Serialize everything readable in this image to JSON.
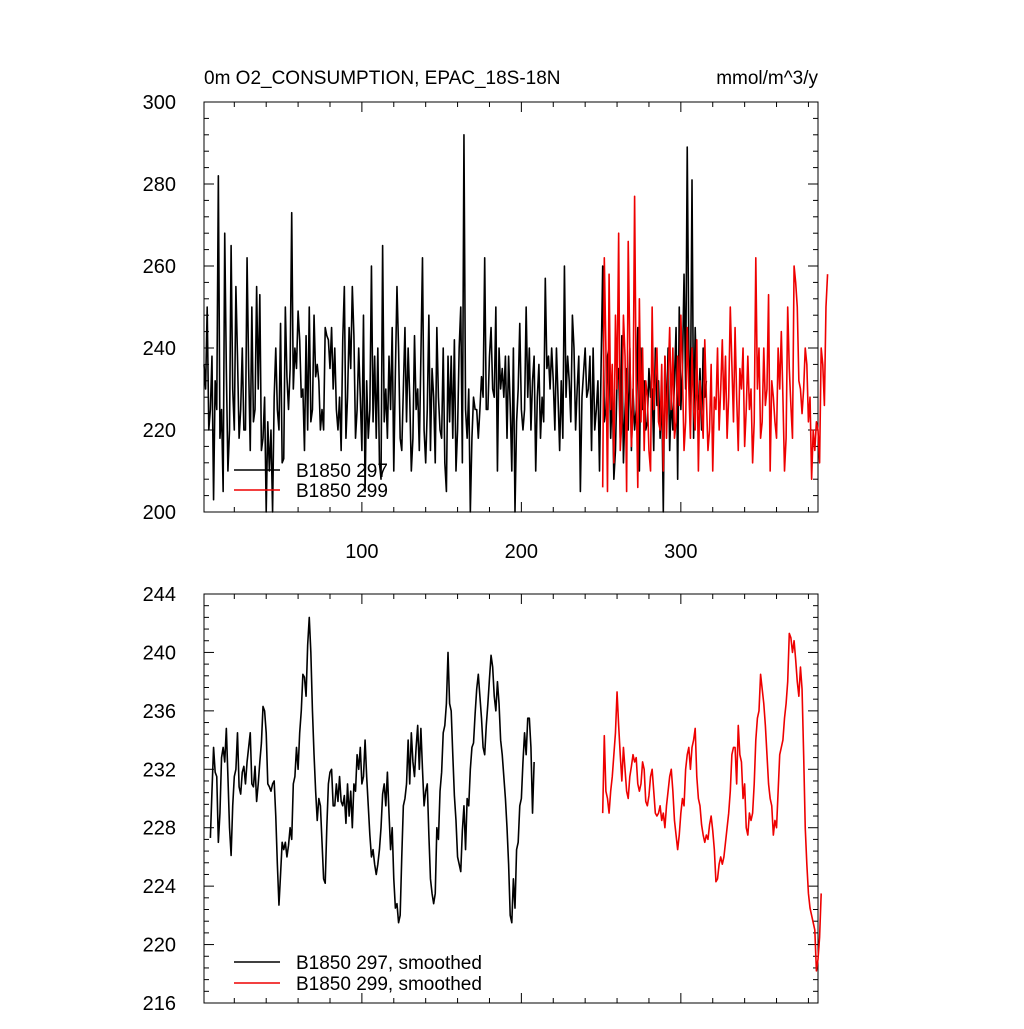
{
  "chart_data": [
    {
      "type": "line",
      "title": "0m O2_CONSUMPTION, EPAC_18S-18N",
      "units": "mmol/m^3/y",
      "xlim": [
        1,
        386
      ],
      "ylim": [
        200,
        300
      ],
      "yticks": [
        200,
        220,
        240,
        260,
        280,
        300
      ],
      "xticks": [
        100,
        200,
        300
      ],
      "legend_position": "lower-left",
      "series": [
        {
          "name": "B1850 297",
          "color": "#000000",
          "x_start": 1,
          "values": [
            236,
            230,
            250,
            220,
            225,
            238,
            203,
            232,
            225,
            282,
            218,
            225,
            205,
            268,
            235,
            210,
            220,
            265,
            230,
            220,
            255,
            238,
            218,
            225,
            240,
            220,
            220,
            262,
            235,
            215,
            250,
            222,
            225,
            255,
            230,
            253,
            215,
            218,
            228,
            200,
            222,
            210,
            220,
            200,
            228,
            240,
            225,
            220,
            246,
            212,
            213,
            250,
            233,
            225,
            235,
            273,
            230,
            240,
            235,
            249,
            242,
            228,
            230,
            215,
            243,
            220,
            250,
            222,
            225,
            248,
            233,
            236,
            232,
            220,
            225,
            220,
            245,
            243,
            242,
            235,
            245,
            230,
            240,
            225,
            220,
            228,
            215,
            242,
            255,
            218,
            228,
            245,
            235,
            255,
            243,
            218,
            225,
            240,
            228,
            215,
            248,
            205,
            232,
            218,
            225,
            260,
            222,
            238,
            218,
            240,
            212,
            208,
            265,
            222,
            230,
            218,
            238,
            225,
            245,
            210,
            234,
            255,
            240,
            218,
            215,
            230,
            245,
            222,
            240,
            228,
            210,
            218,
            243,
            225,
            230,
            215,
            238,
            262,
            220,
            212,
            225,
            248,
            215,
            235,
            228,
            212,
            245,
            228,
            220,
            218,
            240,
            212,
            205,
            238,
            222,
            238,
            218,
            242,
            210,
            220,
            240,
            250,
            212,
            292,
            225,
            218,
            230,
            200,
            218,
            228,
            225,
            225,
            218,
            225,
            233,
            228,
            262,
            225,
            225,
            238,
            245,
            230,
            228,
            250,
            210,
            240,
            230,
            235,
            228,
            238,
            218,
            238,
            226,
            210,
            240,
            200,
            222,
            230,
            246,
            225,
            220,
            225,
            250,
            228,
            240,
            220,
            232,
            238,
            210,
            228,
            236,
            218,
            228,
            222,
            257,
            235,
            238,
            230,
            240,
            232,
            220,
            240,
            228,
            215,
            232,
            218,
            260,
            228,
            238,
            232,
            222,
            248,
            240,
            220,
            230,
            238,
            205,
            228,
            234,
            240,
            228,
            230,
            238,
            215,
            240,
            220,
            225,
            232,
            210,
            236,
            260,
            222,
            225,
            238,
            240,
            218,
            230,
            208,
            215,
            232,
            235,
            218,
            243,
            212,
            225,
            235,
            220,
            240,
            215,
            230,
            220,
            225,
            245,
            210,
            240,
            225,
            232,
            220,
            222,
            235,
            228,
            230,
            215,
            240,
            226,
            232,
            218,
            230,
            200,
            238,
            222,
            240,
            215,
            228,
            220,
            232,
            245,
            208,
            250,
            225,
            235,
            258,
            230,
            289,
            240,
            225,
            281,
            218,
            245,
            230,
            225,
            235,
            220,
            240,
            228,
            232
          ]
        },
        {
          "name": "B1850 299",
          "color": "#ee0000",
          "x_start": 251,
          "values": [
            206,
            262,
            240,
            205,
            258,
            225,
            236,
            212,
            248,
            230,
            268,
            215,
            222,
            248,
            238,
            205,
            266,
            240,
            216,
            225,
            277,
            230,
            206,
            252,
            222,
            240,
            215,
            232,
            228,
            215,
            210,
            250,
            225,
            232,
            240,
            222,
            220,
            236,
            210,
            238,
            218,
            232,
            245,
            225,
            240,
            218,
            222,
            238,
            226,
            248,
            234,
            215,
            222,
            245,
            230,
            218,
            240,
            225,
            220,
            242,
            210,
            232,
            225,
            218,
            242,
            228,
            215,
            220,
            236,
            210,
            228,
            225,
            240,
            220,
            230,
            242,
            225,
            238,
            218,
            228,
            250,
            236,
            222,
            245,
            228,
            215,
            235,
            230,
            240,
            216,
            225,
            238,
            225,
            230,
            212,
            222,
            262,
            230,
            240,
            218,
            222,
            240,
            226,
            230,
            253,
            210,
            232,
            228,
            222,
            218,
            240,
            230,
            244,
            228,
            210,
            218,
            250,
            235,
            226,
            218,
            260,
            256,
            250,
            232,
            230,
            224,
            230,
            240,
            236,
            222,
            228,
            208,
            220,
            215,
            222,
            220,
            212,
            240,
            236,
            226,
            250,
            258
          ]
        }
      ]
    },
    {
      "type": "line",
      "xlim": [
        1,
        386
      ],
      "ylim": [
        216,
        244
      ],
      "yticks": [
        216,
        220,
        224,
        228,
        232,
        236,
        240,
        244
      ],
      "legend_position": "lower-left",
      "series": [
        {
          "name": "B1850 297, smoothed",
          "color": "#000000",
          "x_start": 5,
          "values": [
            227.3,
            230.5,
            233.5,
            231.8,
            231.5,
            227.0,
            229.0,
            232.8,
            233.5,
            232.5,
            234.8,
            231.5,
            228.0,
            226.1,
            229.5,
            231.5,
            232.0,
            234.5,
            230.8,
            230.3,
            231.8,
            232.2,
            231.0,
            232.5,
            233.5,
            234.5,
            231.0,
            230.8,
            232.2,
            229.8,
            231.0,
            232.5,
            233.8,
            236.3,
            236.0,
            234.5,
            231.0,
            230.8,
            230.5,
            231.0,
            231.2,
            228.8,
            225.5,
            222.7,
            224.8,
            227.0,
            226.5,
            227.0,
            226.0,
            226.8,
            228.0,
            227.2,
            231.0,
            231.5,
            233.5,
            232.0,
            234.5,
            236.0,
            238.5,
            238.3,
            237.0,
            240.5,
            242.4,
            240.0,
            236.0,
            233.0,
            230.5,
            228.5,
            230.0,
            229.5,
            227.0,
            224.5,
            224.2,
            228.0,
            231.0,
            231.8,
            232.0,
            229.5,
            229.5,
            231.0,
            229.8,
            231.5,
            229.8,
            229.5,
            230.2,
            228.3,
            231.0,
            228.8,
            230.5,
            228.0,
            231.0,
            230.5,
            233.0,
            232.0,
            233.5,
            231.0,
            231.5,
            234.0,
            231.5,
            229.5,
            227.5,
            226.0,
            226.5,
            225.5,
            224.8,
            225.5,
            226.5,
            228.0,
            230.3,
            231.0,
            229.5,
            231.8,
            229.0,
            226.5,
            228.0,
            224.5,
            222.5,
            222.8,
            221.5,
            222.0,
            226.0,
            229.5,
            230.0,
            231.0,
            234.0,
            231.0,
            234.5,
            232.5,
            231.5,
            233.5,
            235.0,
            232.0,
            234.8,
            232.0,
            229.5,
            230.5,
            231.0,
            227.5,
            224.5,
            223.5,
            222.8,
            223.5,
            228.0,
            227.2,
            230.5,
            231.8,
            234.5,
            235.0,
            236.5,
            240.0,
            236.5,
            236.0,
            233.0,
            230.2,
            228.5,
            226.0,
            225.5,
            225.0,
            227.8,
            229.5,
            226.5,
            230.0,
            229.5,
            232.0,
            233.5,
            233.8,
            235.8,
            237.5,
            238.5,
            237.0,
            235.5,
            233.5,
            233.0,
            235.0,
            236.5,
            238.2,
            239.8,
            239.0,
            237.0,
            236.0,
            238.0,
            236.5,
            234.0,
            233.0,
            231.5,
            230.0,
            228.0,
            225.5,
            222.0,
            221.5,
            224.5,
            222.5,
            226.5,
            227.0,
            229.5,
            230.0,
            232.5,
            234.5,
            233.0,
            235.5,
            235.5,
            233.5,
            229.0,
            232.5
          ]
        },
        {
          "name": "B1850 299, smoothed",
          "color": "#ee0000",
          "x_start": 251,
          "values": [
            229.0,
            234.3,
            230.5,
            230.0,
            229.0,
            230.5,
            231.5,
            233.0,
            234.5,
            237.3,
            235.0,
            233.0,
            231.2,
            233.5,
            232.0,
            230.5,
            230.0,
            231.5,
            232.2,
            233.0,
            232.5,
            232.8,
            231.0,
            230.5,
            231.0,
            232.5,
            232.0,
            229.8,
            229.5,
            230.2,
            231.5,
            232.0,
            230.5,
            229.0,
            228.8,
            229.0,
            229.5,
            228.5,
            229.0,
            228.0,
            229.5,
            230.5,
            231.5,
            232.0,
            230.5,
            228.5,
            227.5,
            226.5,
            227.5,
            229.0,
            230.0,
            229.5,
            232.0,
            233.0,
            233.5,
            232.0,
            233.5,
            234.0,
            234.8,
            231.5,
            230.0,
            229.5,
            228.2,
            227.5,
            227.0,
            227.5,
            227.2,
            228.2,
            228.8,
            227.8,
            226.5,
            224.3,
            224.5,
            225.5,
            226.0,
            225.5,
            226.0,
            227.0,
            228.0,
            229.0,
            230.5,
            233.0,
            233.5,
            233.5,
            231.0,
            235.0,
            233.0,
            232.5,
            230.0,
            231.0,
            228.0,
            227.5,
            229.0,
            228.5,
            229.0,
            231.0,
            234.0,
            235.5,
            236.0,
            238.5,
            237.5,
            236.5,
            235.0,
            233.0,
            231.0,
            230.0,
            229.5,
            227.5,
            228.5,
            228.0,
            230.5,
            233.0,
            233.5,
            234.0,
            235.5,
            236.5,
            238.0,
            241.3,
            241.0,
            240.0,
            240.8,
            239.5,
            238.0,
            237.0,
            239.0,
            237.5,
            233.0,
            228.0,
            225.5,
            223.5,
            222.5,
            222.0,
            221.5,
            221.0,
            218.2,
            219.0,
            220.5,
            223.5
          ]
        }
      ]
    }
  ]
}
